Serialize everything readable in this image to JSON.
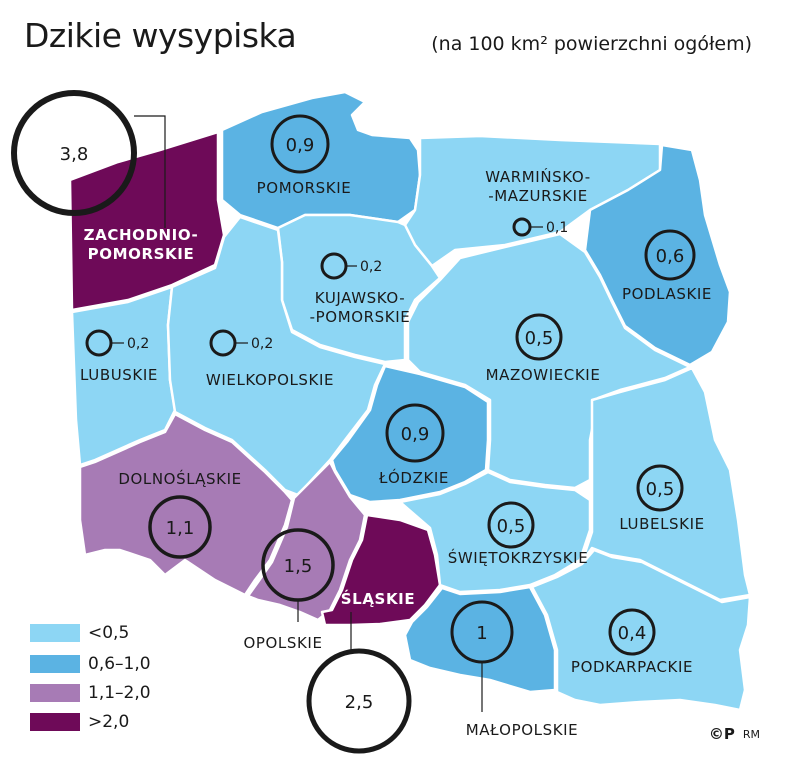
{
  "title": "Dzikie wysypiska",
  "subtitle": "(na 100 km² powierzchni ogółem)",
  "colors": {
    "lt05": "#8dd6f4",
    "c06_10": "#5bb3e3",
    "c11_20": "#a77bb5",
    "gt20": "#6e0a58",
    "border": "#ffffff"
  },
  "legend": [
    {
      "label": "<0,5",
      "color": "#8dd6f4"
    },
    {
      "label": "0,6–1,0",
      "color": "#5bb3e3"
    },
    {
      "label": "1,1–2,0",
      "color": "#a77bb5"
    },
    {
      "label": ">2,0",
      "color": "#6e0a58"
    }
  ],
  "regions": {
    "zachodniopomorskie": {
      "line1": "ZACHODNIO-",
      "line2": "POMORSKIE",
      "value": "3,8"
    },
    "pomorskie": {
      "line1": "POMORSKIE",
      "value": "0,9"
    },
    "warminsko": {
      "line1": "WARMIŃSKO-",
      "line2": "-MAZURSKIE",
      "value": "0,1"
    },
    "podlaskie": {
      "line1": "PODLASKIE",
      "value": "0,6"
    },
    "kujawsko": {
      "line1": "KUJAWSKO-",
      "line2": "-POMORSKIE",
      "value": "0,2"
    },
    "lubuskie": {
      "line1": "LUBUSKIE",
      "value": "0,2"
    },
    "wielkopolskie": {
      "line1": "WIELKOPOLSKIE",
      "value": "0,2"
    },
    "mazowieckie": {
      "line1": "MAZOWIECKIE",
      "value": "0,5"
    },
    "lodzkie": {
      "line1": "ŁÓDZKIE",
      "value": "0,9"
    },
    "dolnoslaskie": {
      "line1": "DOLNOŚLĄSKIE",
      "value": "1,1"
    },
    "opolskie": {
      "line1": "OPOLSKIE",
      "value": "1,5"
    },
    "slaskie": {
      "line1": "ŚLĄSKIE",
      "value": "2,5"
    },
    "swietokrzyskie": {
      "line1": "ŚWIĘTOKRZYSKIE",
      "value": "0,5"
    },
    "lubelskie": {
      "line1": "LUBELSKIE",
      "value": "0,5"
    },
    "malopolskie": {
      "line1": "MAŁOPOLSKIE",
      "value": "1"
    },
    "podkarpackie": {
      "line1": "PODKARPACKIE",
      "value": "0,4"
    }
  },
  "credit": {
    "mark": "©P",
    "initials": "RM"
  }
}
